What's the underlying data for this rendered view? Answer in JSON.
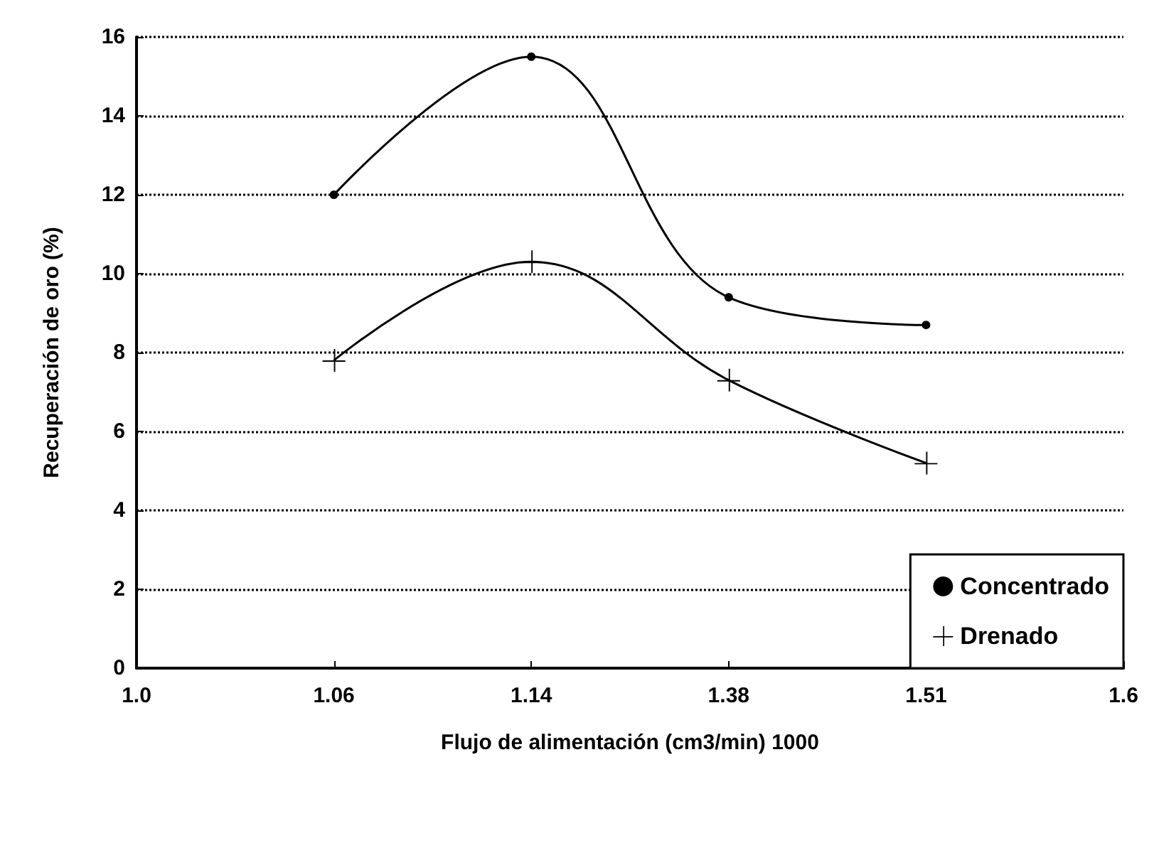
{
  "chart_data": {
    "type": "line",
    "xlabel": "Flujo de alimentación (cm3/min) 1000",
    "ylabel": "Recuperación de oro (%)",
    "categories": [
      "1.0",
      "1.06",
      "1.14",
      "1.38",
      "1.51",
      "1.6"
    ],
    "series": [
      {
        "name": "Concentrado",
        "color": "#000000",
        "marker": "circle",
        "values": [
          null,
          12.0,
          15.5,
          9.4,
          8.7,
          null
        ]
      },
      {
        "name": "Drenado",
        "color": "#000000",
        "marker": "cross",
        "values": [
          null,
          7.8,
          10.3,
          7.3,
          5.2,
          null
        ]
      }
    ],
    "ylim": [
      0,
      16
    ],
    "yticks": [
      0,
      2,
      4,
      6,
      8,
      10,
      12,
      14,
      16
    ],
    "grid": "y",
    "legend": "bottom right",
    "line_style": "solid"
  }
}
